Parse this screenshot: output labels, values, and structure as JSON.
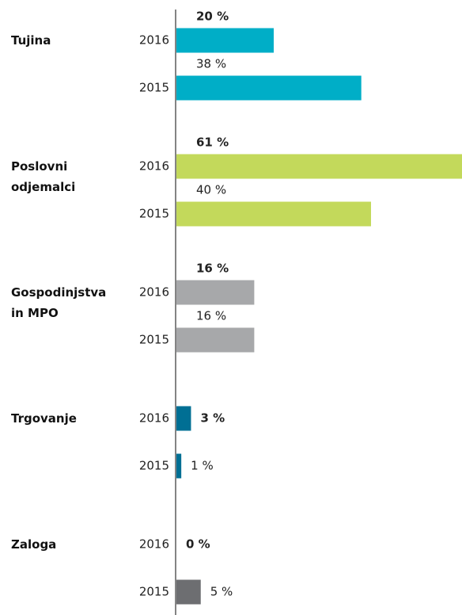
{
  "chart_data": {
    "type": "bar",
    "orientation": "horizontal",
    "categories": [
      "Tujina",
      "Poslovni\nodjemalci",
      "Gospodinjstva\nin MPO",
      "Trgovanje",
      "Zaloga"
    ],
    "colors": [
      "#00aec7",
      "#c3d95b",
      "#a7a8aa",
      "#006f94",
      "#6d6e71"
    ],
    "series": [
      {
        "name": "2016",
        "values": [
          20,
          61,
          16,
          3,
          0
        ],
        "value_labels": [
          "20 %",
          "61 %",
          "16 %",
          "3 %",
          "0 %"
        ]
      },
      {
        "name": "2015",
        "values": [
          38,
          40,
          16,
          1,
          5
        ],
        "value_labels": [
          "38 %",
          "40 %",
          "16 %",
          "1 %",
          "5 %"
        ]
      }
    ]
  }
}
